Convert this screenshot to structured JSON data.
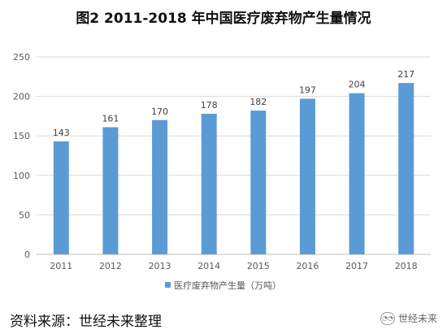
{
  "chart_data": {
    "type": "bar",
    "title": "图2 2011-2018 年中国医疗废弃物产生量情况",
    "categories": [
      "2011",
      "2012",
      "2013",
      "2014",
      "2015",
      "2016",
      "2017",
      "2018"
    ],
    "series": [
      {
        "name": "医疗废弃物产生量（万吨）",
        "values": [
          143,
          161,
          170,
          178,
          182,
          197,
          204,
          217
        ],
        "color": "#5b9bd5"
      }
    ],
    "yticks": [
      "0",
      "50",
      "100",
      "150",
      "200",
      "250"
    ],
    "ylim": [
      0,
      250
    ],
    "grid": true,
    "legend_position": "bottom"
  },
  "source": "资料来源：世经未来整理",
  "watermark": {
    "text": "世经未来",
    "icon": "wechat-icon"
  }
}
